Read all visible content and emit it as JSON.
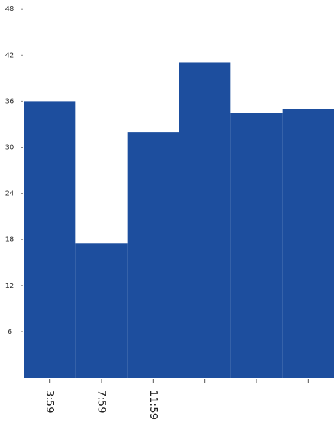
{
  "chart_data": {
    "type": "bar",
    "categories": [
      "3:59",
      "7:59",
      "11:59",
      null,
      null,
      null
    ],
    "values": [
      36,
      17.5,
      32,
      41,
      34.5,
      35
    ],
    "color": "#1d4e9e",
    "ylim": [
      0,
      49
    ],
    "yticks": [
      6,
      12,
      18,
      24,
      30,
      36,
      42,
      48
    ]
  }
}
